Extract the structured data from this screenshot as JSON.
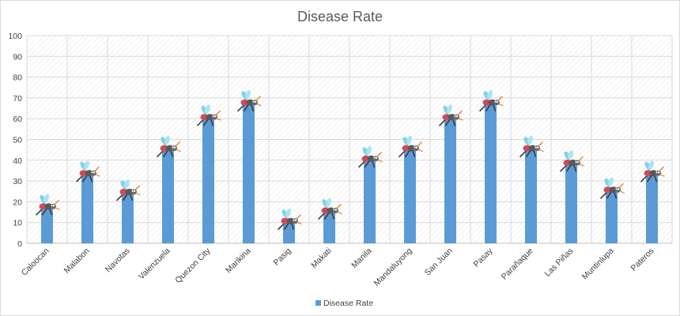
{
  "chart_data": {
    "type": "bar",
    "title": "Disease Rate",
    "xlabel": "",
    "ylabel": "",
    "categories": [
      "Caloocan",
      "Malabon",
      "Navotas",
      "Valenzuela",
      "Quezon City",
      "Marikina",
      "Pasig",
      "Makati",
      "Manila",
      "Mandaluyong",
      "San Juan",
      "Pasay",
      "Parañaque",
      "Las Piñas",
      "Muntinlupa",
      "Pateros"
    ],
    "series": [
      {
        "name": "Disease Rate",
        "values": [
          17,
          33,
          24,
          45,
          60,
          67,
          10,
          15,
          40,
          45,
          60,
          67,
          45,
          38,
          25,
          33
        ]
      }
    ],
    "ylim": [
      0,
      100
    ],
    "yticks": [
      0,
      10,
      20,
      30,
      40,
      50,
      60,
      70,
      80,
      90,
      100
    ],
    "grid": true,
    "legend_position": "bottom",
    "colors": {
      "bar": "#5b9bd5",
      "grid": "#d9d9d9",
      "axis": "#bfbfbf"
    },
    "marker_icon": "mosquito-icon"
  }
}
